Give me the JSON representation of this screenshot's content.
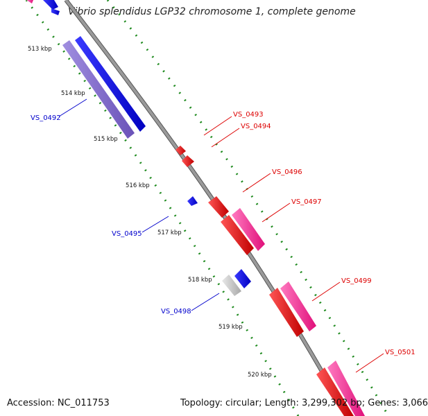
{
  "title": "Vibrio splendidus LGP32 chromosome 1, complete genome",
  "footer": {
    "accession": "Accession: NC_011753",
    "summary": "Topology: circular; Length: 3,299,302 bp; Genes: 3,066"
  },
  "colors": {
    "backbone": "#8c8c8c",
    "tick_dots": "#1e8a1e",
    "forward_gene": "#ee0000",
    "forward_gene_alt": "#ff2f9a",
    "reverse_gene": "#0000ee",
    "reverse_gene_alt": "#7b63c9",
    "unknown_gene": "#c8c8c8",
    "label_forward": "#dd0000",
    "label_reverse": "#0000cc"
  },
  "scale_labels": [
    "513 kbp",
    "514 kbp",
    "515 kbp",
    "516 kbp",
    "517 kbp",
    "518 kbp",
    "519 kbp",
    "520 kbp"
  ],
  "gene_labels": {
    "reverse": [
      "VS_0492",
      "VS_0495",
      "VS_0498"
    ],
    "forward": [
      "VS_0493",
      "VS_0494",
      "VS_0496",
      "VS_0497",
      "VS_0499",
      "VS_0501"
    ]
  }
}
